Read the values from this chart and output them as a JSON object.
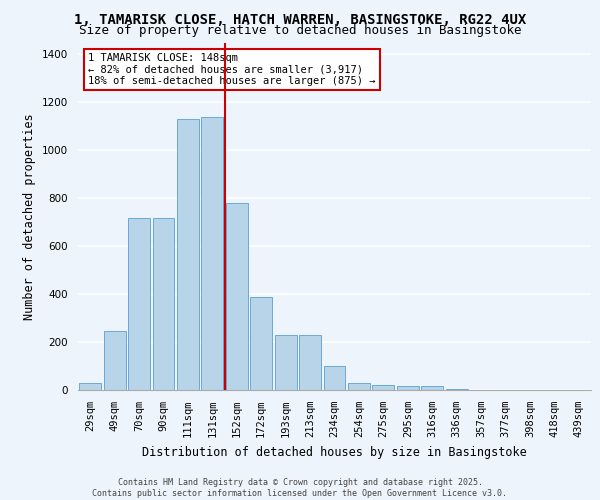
{
  "title": "1, TAMARISK CLOSE, HATCH WARREN, BASINGSTOKE, RG22 4UX",
  "subtitle": "Size of property relative to detached houses in Basingstoke",
  "xlabel": "Distribution of detached houses by size in Basingstoke",
  "ylabel": "Number of detached properties",
  "categories": [
    "29sqm",
    "49sqm",
    "70sqm",
    "90sqm",
    "111sqm",
    "131sqm",
    "152sqm",
    "172sqm",
    "193sqm",
    "213sqm",
    "234sqm",
    "254sqm",
    "275sqm",
    "295sqm",
    "316sqm",
    "336sqm",
    "357sqm",
    "377sqm",
    "398sqm",
    "418sqm",
    "439sqm"
  ],
  "values": [
    30,
    245,
    718,
    718,
    1130,
    1140,
    780,
    390,
    230,
    230,
    100,
    30,
    22,
    18,
    15,
    5,
    0,
    0,
    0,
    0,
    0
  ],
  "bar_color": "#b8d4e8",
  "bar_edge_color": "#5a9fd4",
  "vline_x": 5.5,
  "vline_color": "#cc0000",
  "annotation_text": "1 TAMARISK CLOSE: 148sqm\n← 82% of detached houses are smaller (3,917)\n18% of semi-detached houses are larger (875) →",
  "annotation_box_color": "#ffffff",
  "annotation_box_edge": "#cc0000",
  "ylim": [
    0,
    1450
  ],
  "yticks": [
    0,
    200,
    400,
    600,
    800,
    1000,
    1200,
    1400
  ],
  "title_fontsize": 10,
  "subtitle_fontsize": 9,
  "axis_fontsize": 8.5,
  "tick_fontsize": 7.5,
  "annotation_fontsize": 7.5,
  "footer_text": "Contains HM Land Registry data © Crown copyright and database right 2025.\nContains public sector information licensed under the Open Government Licence v3.0.",
  "footer_fontsize": 6.0,
  "bg_color": "#eef4fb",
  "plot_bg_color": "#eef4fb"
}
